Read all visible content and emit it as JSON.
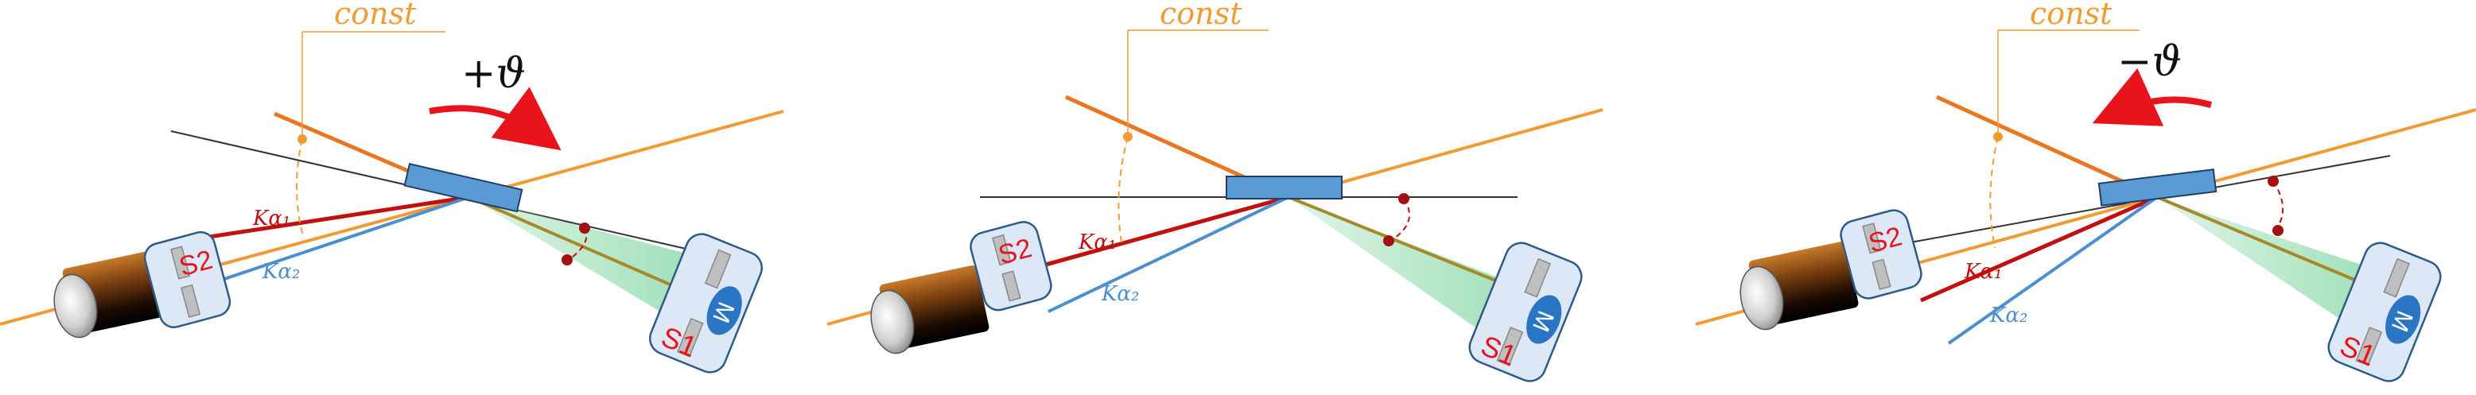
{
  "panels": [
    {
      "id": "left",
      "const_label": "const",
      "rotation_label": "+ϑ",
      "ka1_label": "Kα₁",
      "ka2_label": "Kα₂",
      "s1_label": "S1",
      "s2_label": "S2",
      "m_label": "M"
    },
    {
      "id": "middle",
      "const_label": "const",
      "rotation_label": "",
      "ka1_label": "Kα₁",
      "ka2_label": "Kα₂",
      "s1_label": "S1",
      "s2_label": "S2",
      "m_label": "M"
    },
    {
      "id": "right",
      "const_label": "const",
      "rotation_label": "−ϑ",
      "ka1_label": "Kα₁",
      "ka2_label": "Kα₂",
      "s1_label": "S1",
      "s2_label": "S2",
      "m_label": "M"
    }
  ],
  "colors": {
    "beam_orange": "#f39a33",
    "beam_orange_dark": "#e87722",
    "ka1_red": "#c0100f",
    "ka2_blue": "#4a8fd0",
    "crystal_blue": "#5b9bd5",
    "arrow_red": "#e8141b",
    "label_red": "#e8141b",
    "label_orange": "#f39a33",
    "green_cone": "#7fd6a0",
    "holder_fill": "#dce8f5",
    "holder_stroke": "#2e5a8a"
  }
}
